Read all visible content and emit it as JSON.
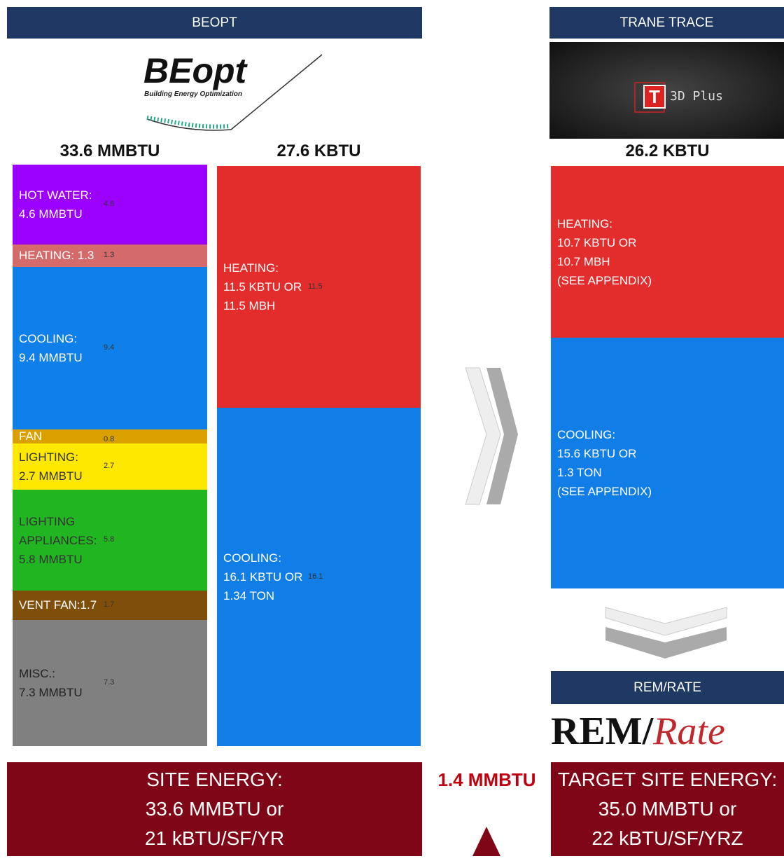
{
  "beopt": {
    "header": "BEOPT",
    "logo": {
      "name": "BEopt",
      "tagline": "Building Energy Optimization"
    },
    "total_site": {
      "title": "33.6 MMBTU",
      "show_values": true,
      "segments": [
        {
          "lines": [
            "HOT WATER:",
            "4.6 MMBTU"
          ],
          "value": 4.6,
          "color": "#9b00ff",
          "text_color": "#ffffff"
        },
        {
          "lines": [
            "HEATING: 1.3"
          ],
          "value": 1.3,
          "color": "#d46a6a",
          "text_color": "#ffffff"
        },
        {
          "lines": [
            "COOLING:",
            "9.4 MMBTU"
          ],
          "value": 9.4,
          "color": "#0f7fe9",
          "text_color": "#ffffff"
        },
        {
          "lines": [
            "FAN"
          ],
          "value": 0.8,
          "color": "#d9a000",
          "text_color": "#ffffff"
        },
        {
          "lines": [
            "LIGHTING:",
            "2.7 MMBTU"
          ],
          "value": 2.7,
          "color": "#ffe800",
          "text_color": "#333333"
        },
        {
          "lines": [
            "LIGHTING",
            "APPLIANCES:",
            "5.8 MMBTU"
          ],
          "value": 5.8,
          "color": "#22b522",
          "text_color": "#333333"
        },
        {
          "lines": [
            "VENT FAN:1.7"
          ],
          "value": 1.7,
          "color": "#7f4f0a",
          "text_color": "#ffffff"
        },
        {
          "lines": [
            "MISC.:",
            "7.3 MMBTU"
          ],
          "value": 7.3,
          "color": "#808080",
          "text_color": "#222222"
        }
      ]
    },
    "peak_load": {
      "title": "27.6 KBTU",
      "show_values": true,
      "segments": [
        {
          "lines": [
            "HEATING:",
            "11.5 KBTU OR",
            "11.5 MBH"
          ],
          "value": 11.5,
          "color": "#e32c2c",
          "text_color": "#ffffff"
        },
        {
          "lines": [
            "COOLING:",
            "16.1 KBTU OR",
            "1.34 TON"
          ],
          "value": 16.1,
          "color": "#117ee8",
          "text_color": "#ffffff"
        }
      ]
    }
  },
  "trane": {
    "header": "TRANE TRACE",
    "logo": {
      "mark": "T",
      "name": "3D Plus"
    },
    "peak_load": {
      "title": "26.2 KBTU",
      "show_values": false,
      "segments": [
        {
          "lines": [
            "HEATING:",
            "10.7 KBTU OR",
            "10.7 MBH",
            "(SEE APPENDIX)"
          ],
          "value": 10.7,
          "color": "#e32c2c",
          "text_color": "#ffffff"
        },
        {
          "lines": [
            "COOLING:",
            "15.6 KBTU OR",
            "1.3 TON",
            "(SEE APPENDIX)"
          ],
          "value": 15.6,
          "color": "#117ee8",
          "text_color": "#ffffff"
        }
      ]
    }
  },
  "remrate": {
    "header": "REM/RATE",
    "logo": {
      "rem": "REM/",
      "rate": "Rate"
    }
  },
  "site_energy": {
    "lines": [
      "SITE ENERGY:",
      "33.6 MMBTU or",
      "21 kBTU/SF/YR"
    ]
  },
  "difference": "1.4 MMBTU",
  "target_site_energy": {
    "lines": [
      "TARGET SITE ENERGY:",
      "35.0 MMBTU or",
      "22 kBTU/SF/YRZ"
    ]
  }
}
